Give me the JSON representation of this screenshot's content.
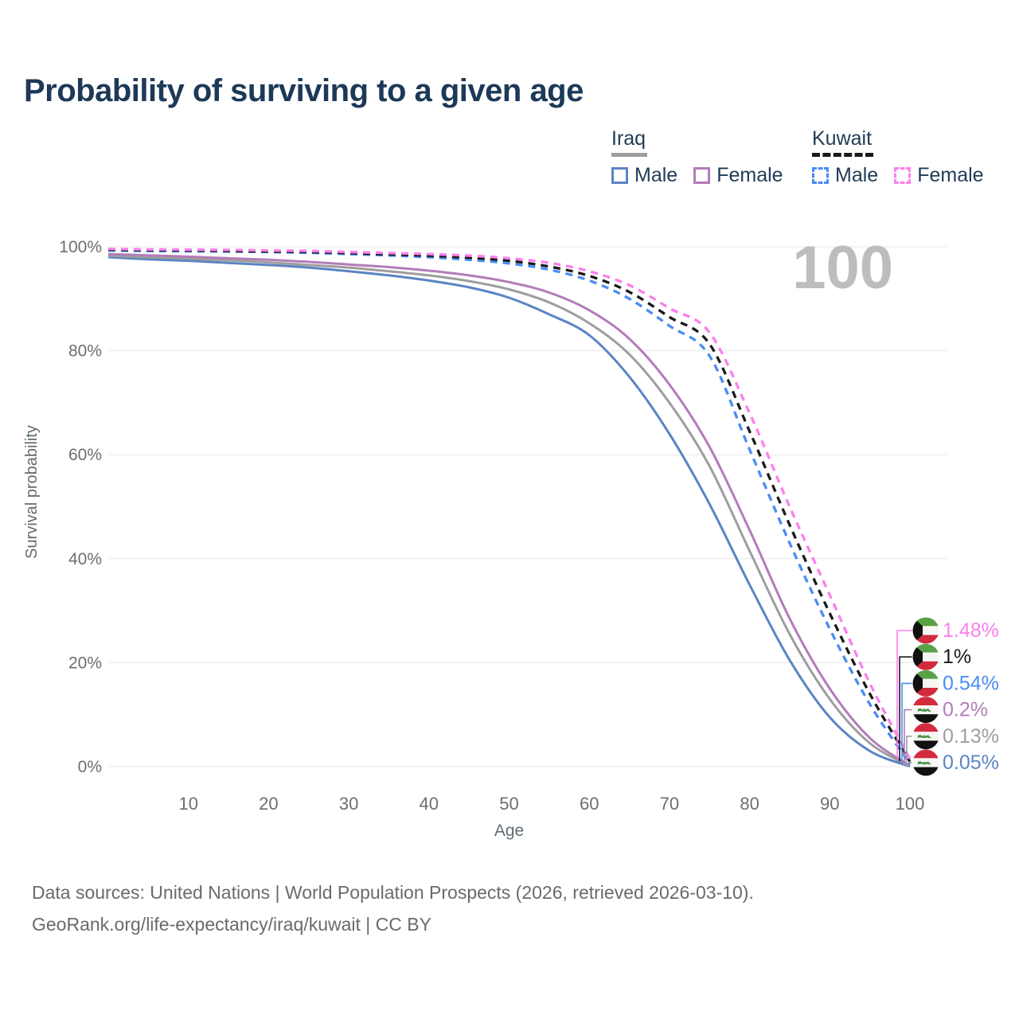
{
  "title": "Probability of surviving to a given age",
  "watermark": "100",
  "legend": {
    "groups": [
      {
        "label": "Iraq",
        "underline_style": "solid",
        "underline_color": "#9e9e9e",
        "items": [
          {
            "label": "Male",
            "color": "#5b84c4",
            "dashed": false
          },
          {
            "label": "Female",
            "color": "#b27db8",
            "dashed": false
          }
        ]
      },
      {
        "label": "Kuwait",
        "underline_style": "dashed",
        "underline_color": "#1a1a1a",
        "items": [
          {
            "label": "Male",
            "color": "#4a8cf5",
            "dashed": true
          },
          {
            "label": "Female",
            "color": "#fb80ec",
            "dashed": true
          }
        ]
      }
    ]
  },
  "chart_data": {
    "type": "line",
    "title": "Probability of surviving to a given age",
    "xlabel": "Age",
    "ylabel": "Survival probability",
    "xlim": [
      0,
      100
    ],
    "ylim": [
      0,
      100
    ],
    "grid": "horizontal-only",
    "x_ticks": [
      {
        "value": 10,
        "label": "10"
      },
      {
        "value": 20,
        "label": "20"
      },
      {
        "value": 30,
        "label": "30"
      },
      {
        "value": 40,
        "label": "40"
      },
      {
        "value": 50,
        "label": "50"
      },
      {
        "value": 60,
        "label": "60"
      },
      {
        "value": 70,
        "label": "70"
      },
      {
        "value": 80,
        "label": "80"
      },
      {
        "value": 90,
        "label": "90"
      },
      {
        "value": 100,
        "label": "100"
      }
    ],
    "y_ticks": [
      {
        "value": 100,
        "label": "100%"
      },
      {
        "value": 80,
        "label": "80%"
      },
      {
        "value": 60,
        "label": "60%"
      },
      {
        "value": 40,
        "label": "40%"
      },
      {
        "value": 20,
        "label": "20%"
      },
      {
        "value": 0,
        "label": "0%"
      }
    ],
    "x": [
      0,
      5,
      10,
      15,
      20,
      25,
      30,
      35,
      40,
      45,
      50,
      55,
      60,
      65,
      70,
      75,
      80,
      85,
      90,
      95,
      100
    ],
    "series": [
      {
        "name": "Kuwait Female",
        "country": "Kuwait",
        "sex": "Female",
        "color": "#fb80ec",
        "dashed": true,
        "flag": "kuwait",
        "end_label": "1.48%",
        "values": [
          99.6,
          99.5,
          99.45,
          99.4,
          99.3,
          99.2,
          99.0,
          98.8,
          98.6,
          98.3,
          97.8,
          96.9,
          95.3,
          92.6,
          88.2,
          83.5,
          68.0,
          50.0,
          33.0,
          16.0,
          1.48
        ]
      },
      {
        "name": "Kuwait (both sexes)",
        "country": "Kuwait",
        "sex": "All",
        "color": "#1a1a1a",
        "dashed": true,
        "flag": "kuwait",
        "end_label": "1%",
        "values": [
          99.45,
          99.35,
          99.3,
          99.2,
          99.1,
          99.0,
          98.8,
          98.55,
          98.3,
          97.9,
          97.3,
          96.2,
          94.4,
          91.3,
          86.5,
          81.3,
          64.5,
          46.5,
          29.5,
          14.0,
          1.0
        ]
      },
      {
        "name": "Kuwait Male",
        "country": "Kuwait",
        "sex": "Male",
        "color": "#4a8cf5",
        "dashed": true,
        "flag": "kuwait",
        "end_label": "0.54%",
        "values": [
          99.3,
          99.2,
          99.15,
          99.1,
          99.0,
          98.85,
          98.6,
          98.35,
          98.0,
          97.5,
          96.8,
          95.6,
          93.5,
          90.0,
          84.8,
          79.0,
          61.0,
          43.0,
          26.5,
          12.0,
          0.54
        ]
      },
      {
        "name": "Iraq Female",
        "country": "Iraq",
        "sex": "Female",
        "color": "#b27db8",
        "dashed": false,
        "flag": "iraq",
        "end_label": "0.2%",
        "values": [
          98.6,
          98.35,
          98.1,
          97.8,
          97.5,
          97.1,
          96.6,
          96.1,
          95.4,
          94.5,
          93.2,
          91.2,
          87.8,
          82.3,
          73.5,
          61.5,
          45.5,
          28.5,
          15.0,
          5.5,
          0.2
        ]
      },
      {
        "name": "Iraq (both sexes)",
        "country": "Iraq",
        "sex": "All",
        "color": "#9e9e9e",
        "dashed": false,
        "flag": "iraq",
        "end_label": "0.13%",
        "values": [
          98.3,
          98.0,
          97.7,
          97.4,
          97.0,
          96.5,
          96.0,
          95.3,
          94.5,
          93.4,
          91.8,
          89.3,
          85.3,
          79.3,
          70.0,
          57.8,
          41.5,
          25.5,
          13.0,
          4.5,
          0.13
        ]
      },
      {
        "name": "Iraq Male",
        "country": "Iraq",
        "sex": "Male",
        "color": "#5b84c4",
        "dashed": false,
        "flag": "iraq",
        "end_label": "0.05%",
        "values": [
          98.0,
          97.6,
          97.3,
          96.9,
          96.5,
          96.0,
          95.3,
          94.5,
          93.5,
          92.2,
          90.2,
          87.0,
          83.0,
          75.0,
          64.0,
          50.5,
          35.0,
          20.5,
          9.5,
          3.0,
          0.05
        ]
      }
    ]
  },
  "footer": {
    "line1": "Data sources: United Nations | World Population Prospects (2026, retrieved 2026-03-10).",
    "line2": "GeoRank.org/life-expectancy/iraq/kuwait | CC BY"
  }
}
